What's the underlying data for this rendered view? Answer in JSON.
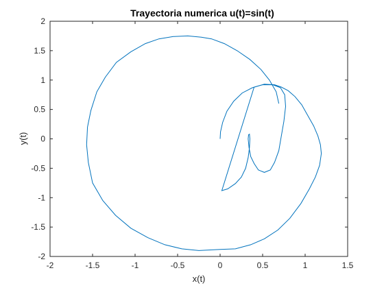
{
  "chart_data": {
    "type": "line",
    "title": "Trayectoria numerica u(t)=sin(t)",
    "xlabel": "x(t)",
    "ylabel": "y(t)",
    "xlim": [
      -2,
      1.5
    ],
    "ylim": [
      -2,
      2
    ],
    "xticks": [
      "-2",
      "-1.5",
      "-1",
      "-0.5",
      "0",
      "0.5",
      "1",
      "1.5"
    ],
    "yticks": [
      "-2",
      "-1.5",
      "-1",
      "-0.5",
      "0",
      "0.5",
      "1",
      "1.5",
      "2"
    ],
    "grid": false,
    "line_color": "#0072BD",
    "series": [
      {
        "x": [
          0.0,
          0.005,
          0.03,
          0.08,
          0.16,
          0.26,
          0.38,
          0.5,
          0.62,
          0.71,
          0.76,
          0.77,
          0.75,
          0.72,
          0.69,
          0.64,
          0.59,
          0.52,
          0.45,
          0.4,
          0.36,
          0.34,
          0.33,
          0.335,
          0.345,
          0.35,
          0.345,
          0.33,
          0.3,
          0.25,
          0.18,
          0.09,
          0.02,
          0.4,
          0.52,
          0.64,
          0.72,
          0.8,
          0.88,
          0.96,
          1.03,
          1.1,
          1.15,
          1.18,
          1.19,
          1.17,
          1.12,
          1.05,
          0.95,
          0.82,
          0.68,
          0.52,
          0.36,
          0.18,
          0.0,
          -0.25,
          -0.45,
          -0.65,
          -0.85,
          -1.05,
          -1.23,
          -1.38,
          -1.5,
          -1.55,
          -1.57,
          -1.56,
          -1.52,
          -1.45,
          -1.35,
          -1.22,
          -1.05,
          -0.88,
          -0.72,
          -0.55,
          -0.38,
          -0.22,
          -0.1,
          0.05,
          0.2,
          0.35,
          0.48,
          0.58,
          0.66,
          0.69
        ],
        "y": [
          0.0,
          0.12,
          0.28,
          0.47,
          0.64,
          0.78,
          0.87,
          0.92,
          0.92,
          0.87,
          0.75,
          0.55,
          0.3,
          0.05,
          -0.2,
          -0.4,
          -0.53,
          -0.57,
          -0.53,
          -0.42,
          -0.3,
          -0.15,
          0.0,
          0.07,
          0.08,
          0.0,
          -0.15,
          -0.32,
          -0.5,
          -0.65,
          -0.76,
          -0.85,
          -0.88,
          0.88,
          0.93,
          0.92,
          0.88,
          0.82,
          0.72,
          0.58,
          0.4,
          0.22,
          0.05,
          -0.1,
          -0.25,
          -0.45,
          -0.65,
          -0.85,
          -1.1,
          -1.35,
          -1.55,
          -1.7,
          -1.8,
          -1.87,
          -1.88,
          -1.9,
          -1.87,
          -1.8,
          -1.68,
          -1.52,
          -1.3,
          -1.05,
          -0.75,
          -0.4,
          -0.1,
          0.2,
          0.48,
          0.8,
          1.05,
          1.3,
          1.48,
          1.62,
          1.7,
          1.74,
          1.75,
          1.73,
          1.7,
          1.62,
          1.5,
          1.35,
          1.18,
          1.0,
          0.8,
          0.6
        ]
      }
    ]
  }
}
